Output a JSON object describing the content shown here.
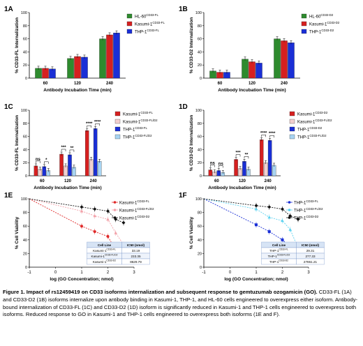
{
  "figure": {
    "caption_title": "Figure 1. Impact of rs12459419 on CD33 isoforms internalization and subsequent response to gemtuzumab ozogamicin (GO).",
    "caption_body": "CD33-FL (1A) and CD33-D2 (1B) isoforms internalize upon antibody binding in Kasumi-1, THP-1, and HL-60 cells engineered to overexpress either isoform. Antibody-bound internalization of CD33-FL (1C) and CD33-D2 (1D) isoform is significantly reduced in Kasumi-1 and THP-1 cells engineered to overexpress both isoforms. Reduced response to GO in Kasumi-1 and THP-1 cells engineered to overexpress both isoforms (1E and F)."
  },
  "chart_data": [
    {
      "id": "1A",
      "type": "bar",
      "categories": [
        "60",
        "120",
        "240"
      ],
      "xlabel": "Antibody Incubation Time (min)",
      "ylabel": "% CD33-FL Internalization",
      "ylim": [
        0,
        100
      ],
      "yticks": [
        "0",
        "20",
        "40",
        "60",
        "80",
        "100"
      ],
      "legend": [
        "HL-60CD33-FL",
        "Kasumi-1CD33-FL",
        "THP-1CD33-FL"
      ],
      "legend_position": "top-right",
      "series": [
        {
          "name": "HL-60CD33-FL",
          "color": "#2e8b2e",
          "values": [
            15,
            30,
            60
          ]
        },
        {
          "name": "Kasumi-1CD33-FL",
          "color": "#d62020",
          "values": [
            15,
            33,
            66
          ]
        },
        {
          "name": "THP-1CD33-FL",
          "color": "#1a2fd6",
          "values": [
            14,
            32,
            69
          ]
        }
      ]
    },
    {
      "id": "1B",
      "type": "bar",
      "categories": [
        "60",
        "120",
        "240"
      ],
      "xlabel": "Antibody Incubation Time (min)",
      "ylabel": "% CD33-D2 Internalization",
      "ylim": [
        0,
        100
      ],
      "yticks": [
        "0",
        "20",
        "40",
        "60",
        "80",
        "100"
      ],
      "legend": [
        "HL-60CD33-D2",
        "Kasumi-1CD33-D2",
        "THP-1CD33-D2"
      ],
      "legend_position": "top-right",
      "series": [
        {
          "name": "HL-60CD33-D2",
          "color": "#2e8b2e",
          "values": [
            11,
            29,
            60
          ]
        },
        {
          "name": "Kasumi-1CD33-D2",
          "color": "#d62020",
          "values": [
            9,
            25,
            57
          ]
        },
        {
          "name": "THP-1CD33-D2",
          "color": "#1a2fd6",
          "values": [
            9,
            23,
            54
          ]
        }
      ]
    },
    {
      "id": "1C",
      "type": "bar",
      "categories": [
        "60",
        "120",
        "240"
      ],
      "xlabel": "Antibody Incubation Time (min)",
      "ylabel": "% CD33-FL Internalization",
      "ylim": [
        0,
        100
      ],
      "yticks": [
        "0",
        "20",
        "40",
        "60",
        "80",
        "100"
      ],
      "legend": [
        "Kasumi-1CD33-FL",
        "Kasumi-1CD33-FL/D2",
        "THP-1CD33-FL",
        "THP-1CD33-FL/D2"
      ],
      "legend_position": "top-right",
      "series": [
        {
          "name": "Kasumi-1CD33-FL",
          "color": "#d62020",
          "values": [
            15,
            33,
            69
          ]
        },
        {
          "name": "Kasumi-1CD33-FL/D2",
          "color": "#f2d0d0",
          "values": [
            10,
            15,
            25
          ]
        },
        {
          "name": "THP-1CD33-FL",
          "color": "#1a2fd6",
          "values": [
            14,
            32,
            72
          ]
        },
        {
          "name": "THP-1CD33-FL/D2",
          "color": "#a8d4f2",
          "values": [
            8,
            13,
            22
          ]
        }
      ],
      "significance": [
        {
          "category": "60",
          "labels": [
            "ns",
            "*"
          ]
        },
        {
          "category": "120",
          "labels": [
            "***",
            "**"
          ]
        },
        {
          "category": "240",
          "labels": [
            "****",
            "****"
          ]
        }
      ]
    },
    {
      "id": "1D",
      "type": "bar",
      "categories": [
        "60",
        "120",
        "240"
      ],
      "xlabel": "Antibody Incubation Time (min)",
      "ylabel": "% CD33-D2 Internalization",
      "ylim": [
        0,
        100
      ],
      "yticks": [
        "0",
        "20",
        "40",
        "60",
        "80",
        "100"
      ],
      "legend": [
        "Kasumi-1CD33-D2",
        "Kasumi-1CD33-FL/D2",
        "THP-1CD33-D2",
        "THP-1CD33-FL/D2"
      ],
      "legend_position": "top-right",
      "series": [
        {
          "name": "Kasumi-1CD33-D2",
          "color": "#d62020",
          "values": [
            9,
            25,
            55
          ]
        },
        {
          "name": "Kasumi-1CD33-FL/D2",
          "color": "#f2d0d0",
          "values": [
            6,
            11,
            20
          ]
        },
        {
          "name": "THP-1CD33-D2",
          "color": "#1a2fd6",
          "values": [
            8,
            22,
            54
          ]
        },
        {
          "name": "THP-1CD33-FL/D2",
          "color": "#a8d4f2",
          "values": [
            5,
            10,
            16
          ]
        }
      ],
      "significance": [
        {
          "category": "60",
          "labels": [
            "ns",
            "ns"
          ]
        },
        {
          "category": "120",
          "labels": [
            "***",
            "**"
          ]
        },
        {
          "category": "240",
          "labels": [
            "****",
            "****"
          ]
        }
      ]
    },
    {
      "id": "1E",
      "type": "scatter",
      "xlabel": "log (GO Concentration; nmol)",
      "ylabel": "% Cell Viability",
      "xlim": [
        -1,
        3
      ],
      "ylim": [
        0,
        100
      ],
      "xticks": [
        "-1",
        "0",
        "1",
        "2",
        "3"
      ],
      "yticks": [
        "0",
        "20",
        "40",
        "60",
        "80",
        "100"
      ],
      "legend": [
        "Kasumi-1CD33-FL",
        "Kasumi-1CD33-FL/D2",
        "Kasumi-1CD33-D2"
      ],
      "legend_position": "top-right",
      "series": [
        {
          "name": "Kasumi-1CD33-FL",
          "color": "#e02828",
          "marker": "circle",
          "x": [
            1.0,
            1.5,
            2.0,
            2.3,
            2.6
          ],
          "y": [
            60,
            52,
            45,
            25,
            10
          ]
        },
        {
          "name": "Kasumi-1CD33-FL/D2",
          "color": "#f2a0a8",
          "marker": "triangle",
          "x": [
            1.0,
            1.5,
            2.0,
            2.3,
            2.6
          ],
          "y": [
            82,
            75,
            70,
            50,
            33
          ]
        },
        {
          "name": "Kasumi-1CD33-D2",
          "color": "#111111",
          "marker": "diamond",
          "x": [
            1.0,
            1.5,
            2.0,
            2.3,
            2.6
          ],
          "y": [
            88,
            85,
            82,
            70,
            65
          ]
        }
      ],
      "table": {
        "headers": [
          "Cell Line",
          "IC50 (nmol)"
        ],
        "rows": [
          [
            "Kasumi-1CD33-FL",
            "33.19"
          ],
          [
            "Kasumi-1CD33-FL/D2",
            "233.35"
          ],
          [
            "Kasumi-1CD33-D2",
            "8629.79"
          ]
        ]
      }
    },
    {
      "id": "1F",
      "type": "scatter",
      "xlabel": "log (GO Concentration; nmol)",
      "ylabel": "% Cell Viability",
      "xlim": [
        -1,
        3
      ],
      "ylim": [
        0,
        100
      ],
      "xticks": [
        "-1",
        "0",
        "1",
        "2",
        "3"
      ],
      "yticks": [
        "0",
        "20",
        "40",
        "60",
        "80",
        "100"
      ],
      "legend": [
        "THP-1CD33-FL",
        "THP-1CD33-FL/D2",
        "THP-1CD33-D2"
      ],
      "legend_position": "top-right",
      "series": [
        {
          "name": "THP-1CD33-FL",
          "color": "#1a2fd6",
          "marker": "square",
          "x": [
            1.0,
            1.5,
            2.0,
            2.3,
            2.6
          ],
          "y": [
            62,
            52,
            40,
            30,
            10
          ]
        },
        {
          "name": "THP-1CD33-FL/D2",
          "color": "#5cd2f0",
          "marker": "triangle",
          "x": [
            1.0,
            1.5,
            2.0,
            2.3,
            2.6
          ],
          "y": [
            85,
            73,
            68,
            55,
            28
          ]
        },
        {
          "name": "THP-1CD33-D2",
          "color": "#111111",
          "marker": "diamond",
          "x": [
            1.0,
            1.5,
            2.0,
            2.3,
            2.6
          ],
          "y": [
            90,
            88,
            85,
            75,
            70
          ]
        }
      ],
      "table": {
        "headers": [
          "Cell Line",
          "IC50 (nmol)"
        ],
        "rows": [
          [
            "THP-1CD33-FL",
            "29.31"
          ],
          [
            "THP-1CD33-FL/D2",
            "277.33"
          ],
          [
            "THP-1CD33-D2",
            "27861.21"
          ]
        ]
      }
    }
  ]
}
